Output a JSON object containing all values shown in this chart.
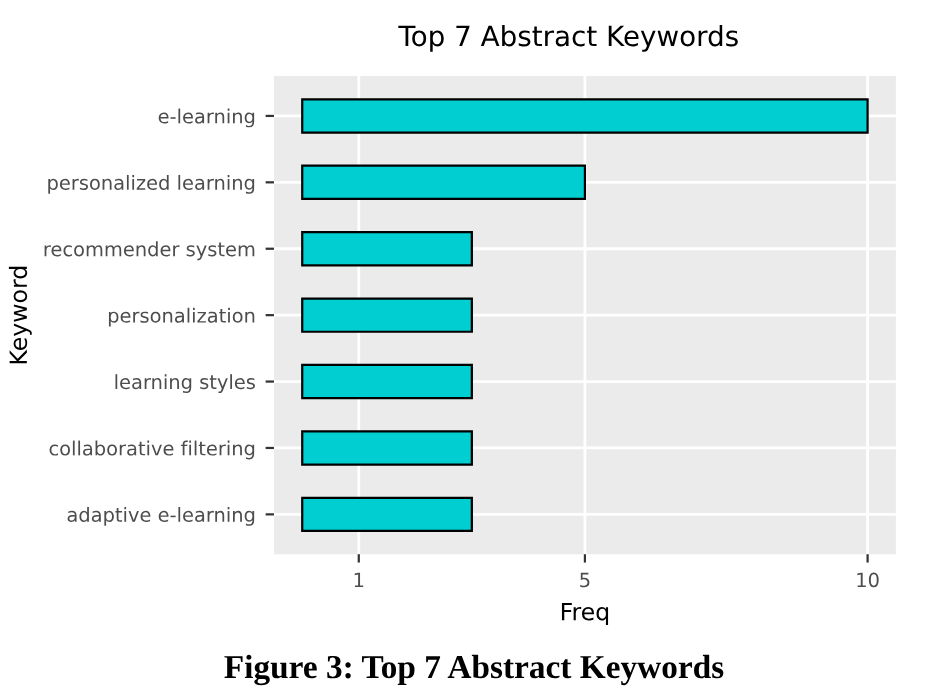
{
  "chart_data": {
    "type": "bar",
    "orientation": "horizontal",
    "title": "Top 7 Abstract Keywords",
    "xlabel": "Freq",
    "ylabel": "Keyword",
    "categories": [
      "e-learning",
      "personalized learning",
      "recommender system",
      "personalization",
      "learning styles",
      "collaborative filtering",
      "adaptive e-learning"
    ],
    "values": [
      10,
      5,
      3,
      3,
      3,
      3,
      3
    ],
    "color": "#00ced1",
    "xlim": [
      -0.5,
      10.5
    ],
    "xticks": [
      1,
      5,
      10
    ],
    "grid": true,
    "annotations": [
      "Figure 3: Top 7 Abstract Keywords"
    ]
  }
}
